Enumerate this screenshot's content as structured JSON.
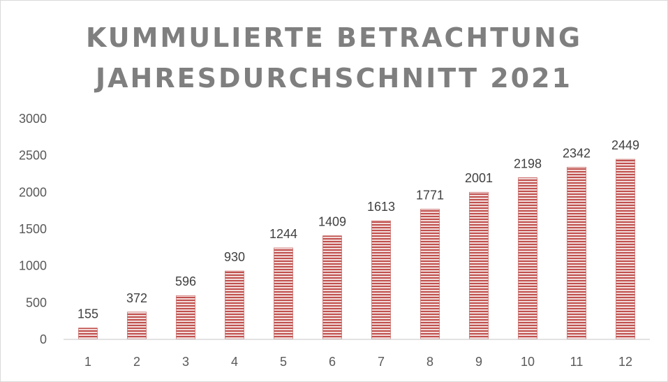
{
  "chart_data": {
    "type": "bar",
    "title_line1": "KUMMULIERTE BETRACHTUNG",
    "title_line2": "JAHRESDURCHSCHNITT 2021",
    "categories": [
      "1",
      "2",
      "3",
      "4",
      "5",
      "6",
      "7",
      "8",
      "9",
      "10",
      "11",
      "12"
    ],
    "values": [
      155,
      372,
      596,
      930,
      1244,
      1409,
      1613,
      1771,
      2001,
      2198,
      2342,
      2449
    ],
    "y_ticks": [
      0,
      500,
      1000,
      1500,
      2000,
      2500,
      3000
    ],
    "ylim": [
      0,
      3000
    ],
    "grid": false,
    "legend": "none",
    "bar_color": "#c0504d",
    "bar_stripe_color": "#f2dcdb",
    "title_color": "#7f7f7f"
  }
}
